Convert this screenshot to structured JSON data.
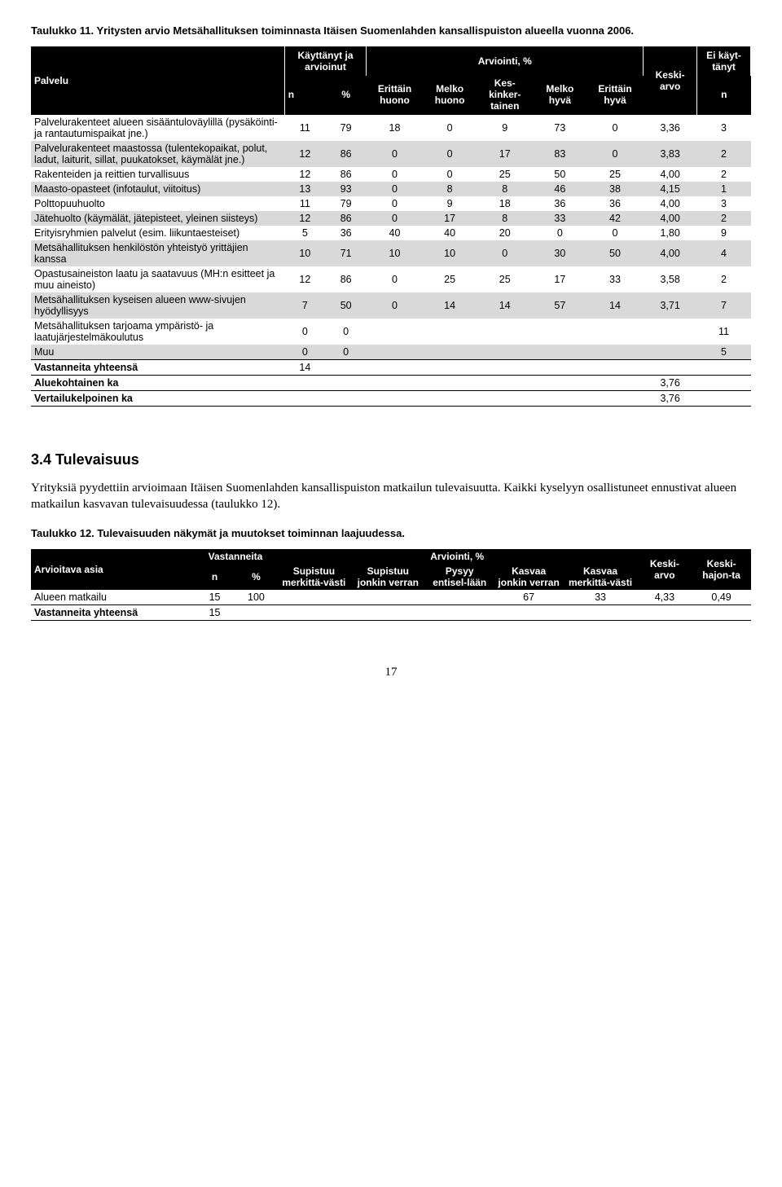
{
  "table1": {
    "title": "Taulukko 11. Yritysten arvio Metsähallituksen toiminnasta Itäisen Suomenlahden kansallispuiston alueella vuonna 2006.",
    "header": {
      "palvelu": "Palvelu",
      "kayttanyt": "Käyttänyt ja arvioinut",
      "arviointi": "Arviointi, %",
      "keskiarvo": "Keski-arvo",
      "ei_kayt": "Ei käyt-tänyt",
      "n": "n",
      "pct": "%",
      "eh": "Erittäin huono",
      "mh": "Melko huono",
      "kk": "Kes-kinker-tainen",
      "mhv": "Melko hyvä",
      "ehv": "Erittäin hyvä"
    },
    "rows": [
      {
        "label": "Palvelurakenteet alueen sisääntuloväylillä (pysäköinti- ja rantautumispaikat jne.)",
        "v": [
          "11",
          "79",
          "18",
          "0",
          "9",
          "73",
          "0",
          "3,36",
          "3"
        ],
        "alt": false
      },
      {
        "label": "Palvelurakenteet maastossa (tulentekopaikat, polut, ladut, laiturit, sillat, puukatokset, käymälät jne.)",
        "v": [
          "12",
          "86",
          "0",
          "0",
          "17",
          "83",
          "0",
          "3,83",
          "2"
        ],
        "alt": true
      },
      {
        "label": "Rakenteiden ja reittien turvallisuus",
        "v": [
          "12",
          "86",
          "0",
          "0",
          "25",
          "50",
          "25",
          "4,00",
          "2"
        ],
        "alt": false
      },
      {
        "label": "Maasto-opasteet (infotaulut, viitoitus)",
        "v": [
          "13",
          "93",
          "0",
          "8",
          "8",
          "46",
          "38",
          "4,15",
          "1"
        ],
        "alt": true
      },
      {
        "label": "Polttopuuhuolto",
        "v": [
          "11",
          "79",
          "0",
          "9",
          "18",
          "36",
          "36",
          "4,00",
          "3"
        ],
        "alt": false
      },
      {
        "label": "Jätehuolto (käymälät, jätepisteet, yleinen siisteys)",
        "v": [
          "12",
          "86",
          "0",
          "17",
          "8",
          "33",
          "42",
          "4,00",
          "2"
        ],
        "alt": true
      },
      {
        "label": "Erityisryhmien palvelut (esim. liikuntaesteiset)",
        "v": [
          "5",
          "36",
          "40",
          "40",
          "20",
          "0",
          "0",
          "1,80",
          "9"
        ],
        "alt": false
      },
      {
        "label": "Metsähallituksen henkilöstön yhteistyö yrittäjien kanssa",
        "v": [
          "10",
          "71",
          "10",
          "10",
          "0",
          "30",
          "50",
          "4,00",
          "4"
        ],
        "alt": true
      },
      {
        "label": "Opastusaineiston laatu ja saatavuus (MH:n esitteet ja muu aineisto)",
        "v": [
          "12",
          "86",
          "0",
          "25",
          "25",
          "17",
          "33",
          "3,58",
          "2"
        ],
        "alt": false
      },
      {
        "label": "Metsähallituksen kyseisen alueen www-sivujen hyödyllisyys",
        "v": [
          "7",
          "50",
          "0",
          "14",
          "14",
          "57",
          "14",
          "3,71",
          "7"
        ],
        "alt": true
      },
      {
        "label": "Metsähallituksen tarjoama ympäristö- ja laatujärjestelmäkoulutus",
        "v": [
          "0",
          "0",
          "",
          "",
          "",
          "",
          "",
          "",
          "11"
        ],
        "alt": false
      },
      {
        "label": "Muu",
        "v": [
          "0",
          "0",
          "",
          "",
          "",
          "",
          "",
          "",
          "5"
        ],
        "alt": true
      }
    ],
    "summary": [
      {
        "label": "Vastanneita yhteensä",
        "val": "14",
        "col": 1
      },
      {
        "label": "Aluekohtainen ka",
        "val": "3,76",
        "col": 8
      },
      {
        "label": "Vertailukelpoinen ka",
        "val": "3,76",
        "col": 8
      }
    ]
  },
  "section": {
    "heading": "3.4 Tulevaisuus",
    "paragraph": "Yrityksiä pyydettiin arvioimaan Itäisen Suomenlahden kansallispuiston matkailun tulevaisuutta. Kaikki kyselyyn osallistuneet ennustivat alueen matkailun kasvavan tulevaisuudessa (taulukko 12)."
  },
  "table2": {
    "title": "Taulukko 12. Tulevaisuuden näkymät ja muutokset toiminnan laajuudessa.",
    "header": {
      "asia": "Arvioitava asia",
      "vast": "Vastanneita",
      "arviointi": "Arviointi, %",
      "keskiarvo": "Keski-arvo",
      "hajonta": "Keski-hajon-ta",
      "n": "n",
      "pct": "%",
      "c1": "Supistuu merkittä-västi",
      "c2": "Supistuu jonkin verran",
      "c3": "Pysyy entisel-lään",
      "c4": "Kasvaa jonkin verran",
      "c5": "Kasvaa merkittä-västi"
    },
    "rows": [
      {
        "label": "Alueen matkailu",
        "v": [
          "15",
          "100",
          "",
          "",
          "",
          "67",
          "33",
          "4,33",
          "0,49"
        ]
      }
    ],
    "summary": {
      "label": "Vastanneita yhteensä",
      "val": "15"
    }
  },
  "page": "17"
}
